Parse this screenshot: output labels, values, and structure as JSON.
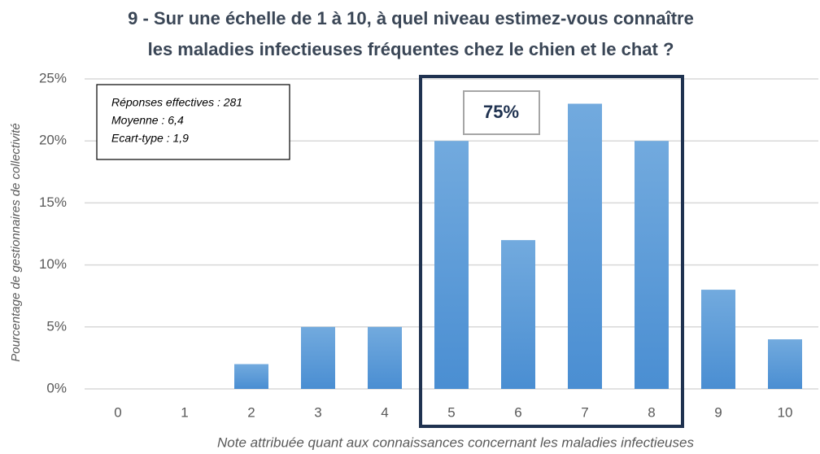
{
  "chart_data": {
    "type": "bar",
    "title": [
      "9 - Sur une échelle de 1 à 10, à quel niveau estimez-vous connaître",
      "les maladies infectieuses fréquentes chez le chien et le chat ?"
    ],
    "x_label": "Note attribuée quant aux connaissances concernant les maladies infectieuses",
    "y_label": "Pourcentage de gestionnaires de collectivité",
    "categories": [
      "0",
      "1",
      "2",
      "3",
      "4",
      "5",
      "6",
      "7",
      "8",
      "9",
      "10"
    ],
    "values": [
      0,
      0,
      2,
      5,
      5,
      20,
      12,
      23,
      20,
      8,
      4
    ],
    "color": "#5b9bd5",
    "ylim": [
      0,
      25
    ],
    "yticks": [
      {
        "value": 0,
        "label": "0%"
      },
      {
        "value": 5,
        "label": "5%"
      },
      {
        "value": 10,
        "label": "10%"
      },
      {
        "value": 15,
        "label": "15%"
      },
      {
        "value": 20,
        "label": "20%"
      },
      {
        "value": 25,
        "label": "25%"
      }
    ],
    "grid": true,
    "info_box": [
      "Réponses effectives : 281",
      "Moyenne : 6,4",
      "Ecart-type : 1,9"
    ],
    "highlight_label": "75%"
  }
}
